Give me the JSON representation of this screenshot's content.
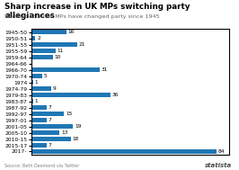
{
  "chart_data": {
    "type": "bar",
    "orientation": "horizontal",
    "title": "Sharp increase in UK MPs switching party allegiances",
    "subtitle": "Number of times MPs have changed party since 1945",
    "categories": [
      "1945-50",
      "1950-51",
      "1951-55",
      "1955-59",
      "1959-64",
      "1964-66",
      "1966-70",
      "1970-74",
      "1974",
      "1974-79",
      "1979-83",
      "1983-87",
      "1987-92",
      "1992-97",
      "1997-01",
      "2001-05",
      "2005-10",
      "2010-15",
      "2015-17",
      "2017-"
    ],
    "values": [
      16,
      2,
      21,
      11,
      10,
      0,
      31,
      5,
      1,
      9,
      36,
      1,
      7,
      15,
      7,
      19,
      13,
      18,
      7,
      84
    ],
    "value_labels": [
      "16",
      "2",
      "21",
      "11",
      "10",
      null,
      "31",
      "5",
      "1",
      "9",
      "36",
      "1",
      "7",
      "15",
      "7",
      "19",
      "13",
      "18",
      "7",
      "84"
    ],
    "data_labels": true,
    "xlim": [
      0,
      90
    ],
    "tick_labels": "y",
    "annotations": [
      "Source: Beth Desmond via Twitter",
      "statista"
    ]
  }
}
